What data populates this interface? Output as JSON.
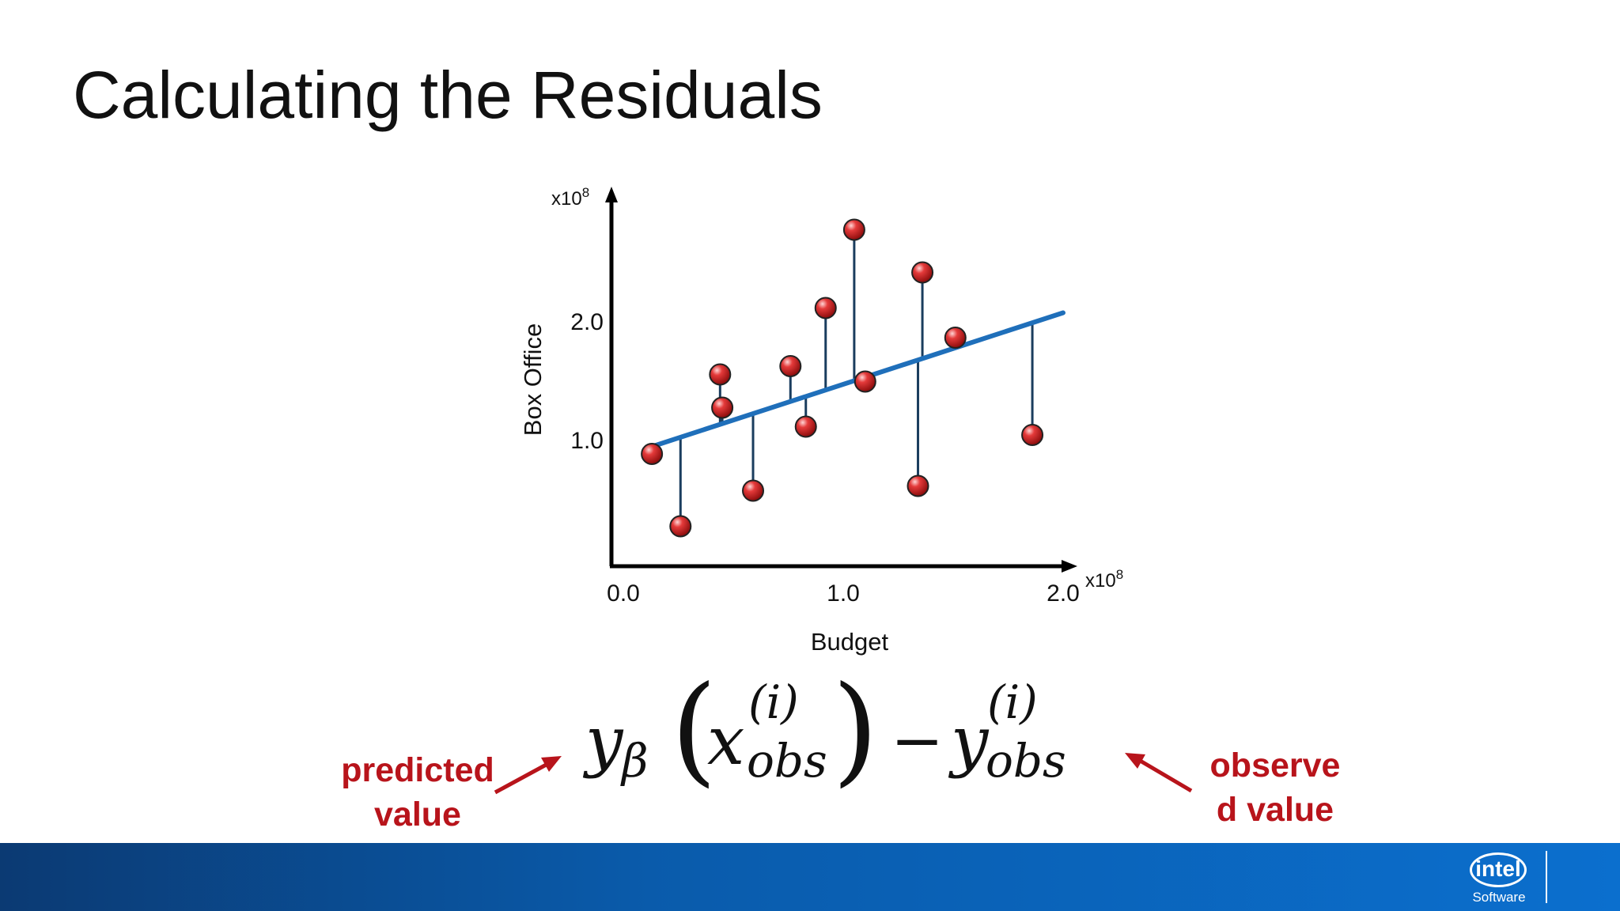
{
  "slide": {
    "title": "Calculating the Residuals"
  },
  "chart_data": {
    "type": "scatter",
    "title": "",
    "xlabel": "Budget",
    "ylabel": "Box Office",
    "x_multiplier": "x10",
    "x_multiplier_exp": "8",
    "y_multiplier": "x10",
    "y_multiplier_exp": "8",
    "xlim": [
      0.0,
      2.0
    ],
    "ylim": [
      0.0,
      3.0
    ],
    "x_ticks": [
      "0.0",
      "1.0",
      "2.0"
    ],
    "y_ticks": [
      "1.0",
      "2.0"
    ],
    "x_tick_values": [
      0.0,
      1.0,
      2.0
    ],
    "y_tick_values": [
      1.0,
      2.0
    ],
    "grid": false,
    "series": [
      {
        "name": "observed",
        "x": [
          0.13,
          0.26,
          0.44,
          0.45,
          0.59,
          0.76,
          0.83,
          0.92,
          1.05,
          1.1,
          1.34,
          1.36,
          1.51,
          1.86
        ],
        "y": [
          0.88,
          0.27,
          1.55,
          1.27,
          0.57,
          1.62,
          1.11,
          2.11,
          2.77,
          1.49,
          0.61,
          2.41,
          1.86,
          1.04
        ]
      }
    ],
    "fit_line": {
      "x": [
        0.11,
        2.0
      ],
      "y": [
        0.93,
        2.07
      ]
    },
    "residuals": true
  },
  "formula": {
    "y": "y",
    "beta": "β",
    "x": "x",
    "i": "(i)",
    "obs": "obs",
    "minus": "−",
    "lparen": "(",
    "rparen": ")"
  },
  "annotations": {
    "predicted_line1": "predicted",
    "predicted_line2": "value",
    "observed_line1": "observe",
    "observed_line2": "d value"
  },
  "colors": {
    "point": "#cc1f1f",
    "fit_line": "#1f6fba",
    "residual": "#1a3d5e",
    "annotation": "#b8141b"
  },
  "footer": {
    "logo_text": "intel",
    "logo_sub": "Software",
    "logo_icon": "intel-logo-icon"
  }
}
